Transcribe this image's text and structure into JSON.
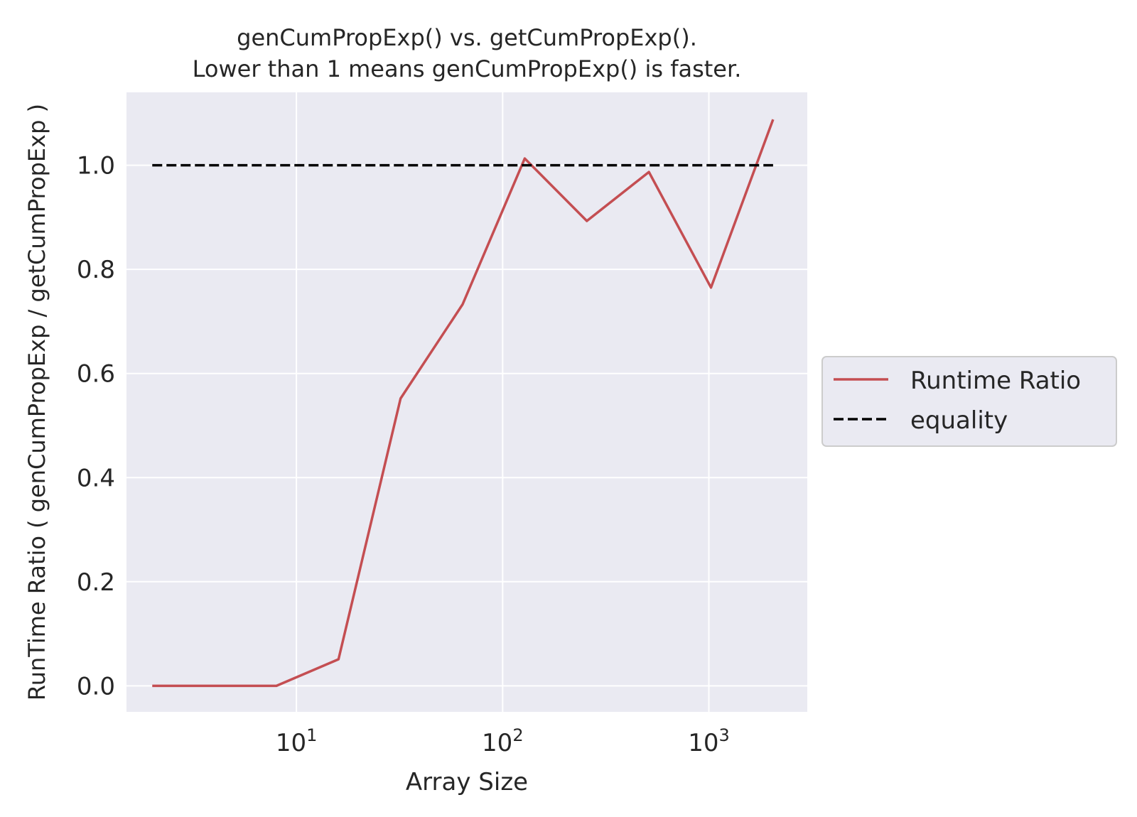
{
  "chart_data": {
    "type": "line",
    "title_line1": "genCumPropExp() vs. getCumPropExp().",
    "title_line2": "Lower than 1 means genCumPropExp() is faster.",
    "xlabel": "Array Size",
    "ylabel": "RunTime Ratio ( genCumPropExp / getCumPropExp )",
    "x_scale": "log",
    "xlim": [
      1.5,
      3000
    ],
    "ylim": [
      -0.05,
      1.14
    ],
    "x_ticks": [
      {
        "value": 10,
        "base": "10",
        "exp": "1"
      },
      {
        "value": 100,
        "base": "10",
        "exp": "2"
      },
      {
        "value": 1000,
        "base": "10",
        "exp": "3"
      }
    ],
    "y_ticks": [
      {
        "value": 0.0,
        "label": "0.0"
      },
      {
        "value": 0.2,
        "label": "0.2"
      },
      {
        "value": 0.4,
        "label": "0.4"
      },
      {
        "value": 0.6,
        "label": "0.6"
      },
      {
        "value": 0.8,
        "label": "0.8"
      },
      {
        "value": 1.0,
        "label": "1.0"
      }
    ],
    "grid": true,
    "legend_position": "right",
    "series": [
      {
        "name": "Runtime Ratio",
        "color": "#c44e52",
        "style": "solid",
        "x": [
          2,
          4,
          8,
          16,
          32,
          64,
          128,
          256,
          512,
          1024,
          2048
        ],
        "y": [
          0.0,
          0.0,
          0.0,
          0.051,
          0.552,
          0.733,
          1.013,
          0.893,
          0.987,
          0.765,
          1.088
        ]
      },
      {
        "name": "equality",
        "color": "#000000",
        "style": "dashed",
        "x": [
          2,
          2048
        ],
        "y": [
          1.0,
          1.0
        ]
      }
    ]
  }
}
